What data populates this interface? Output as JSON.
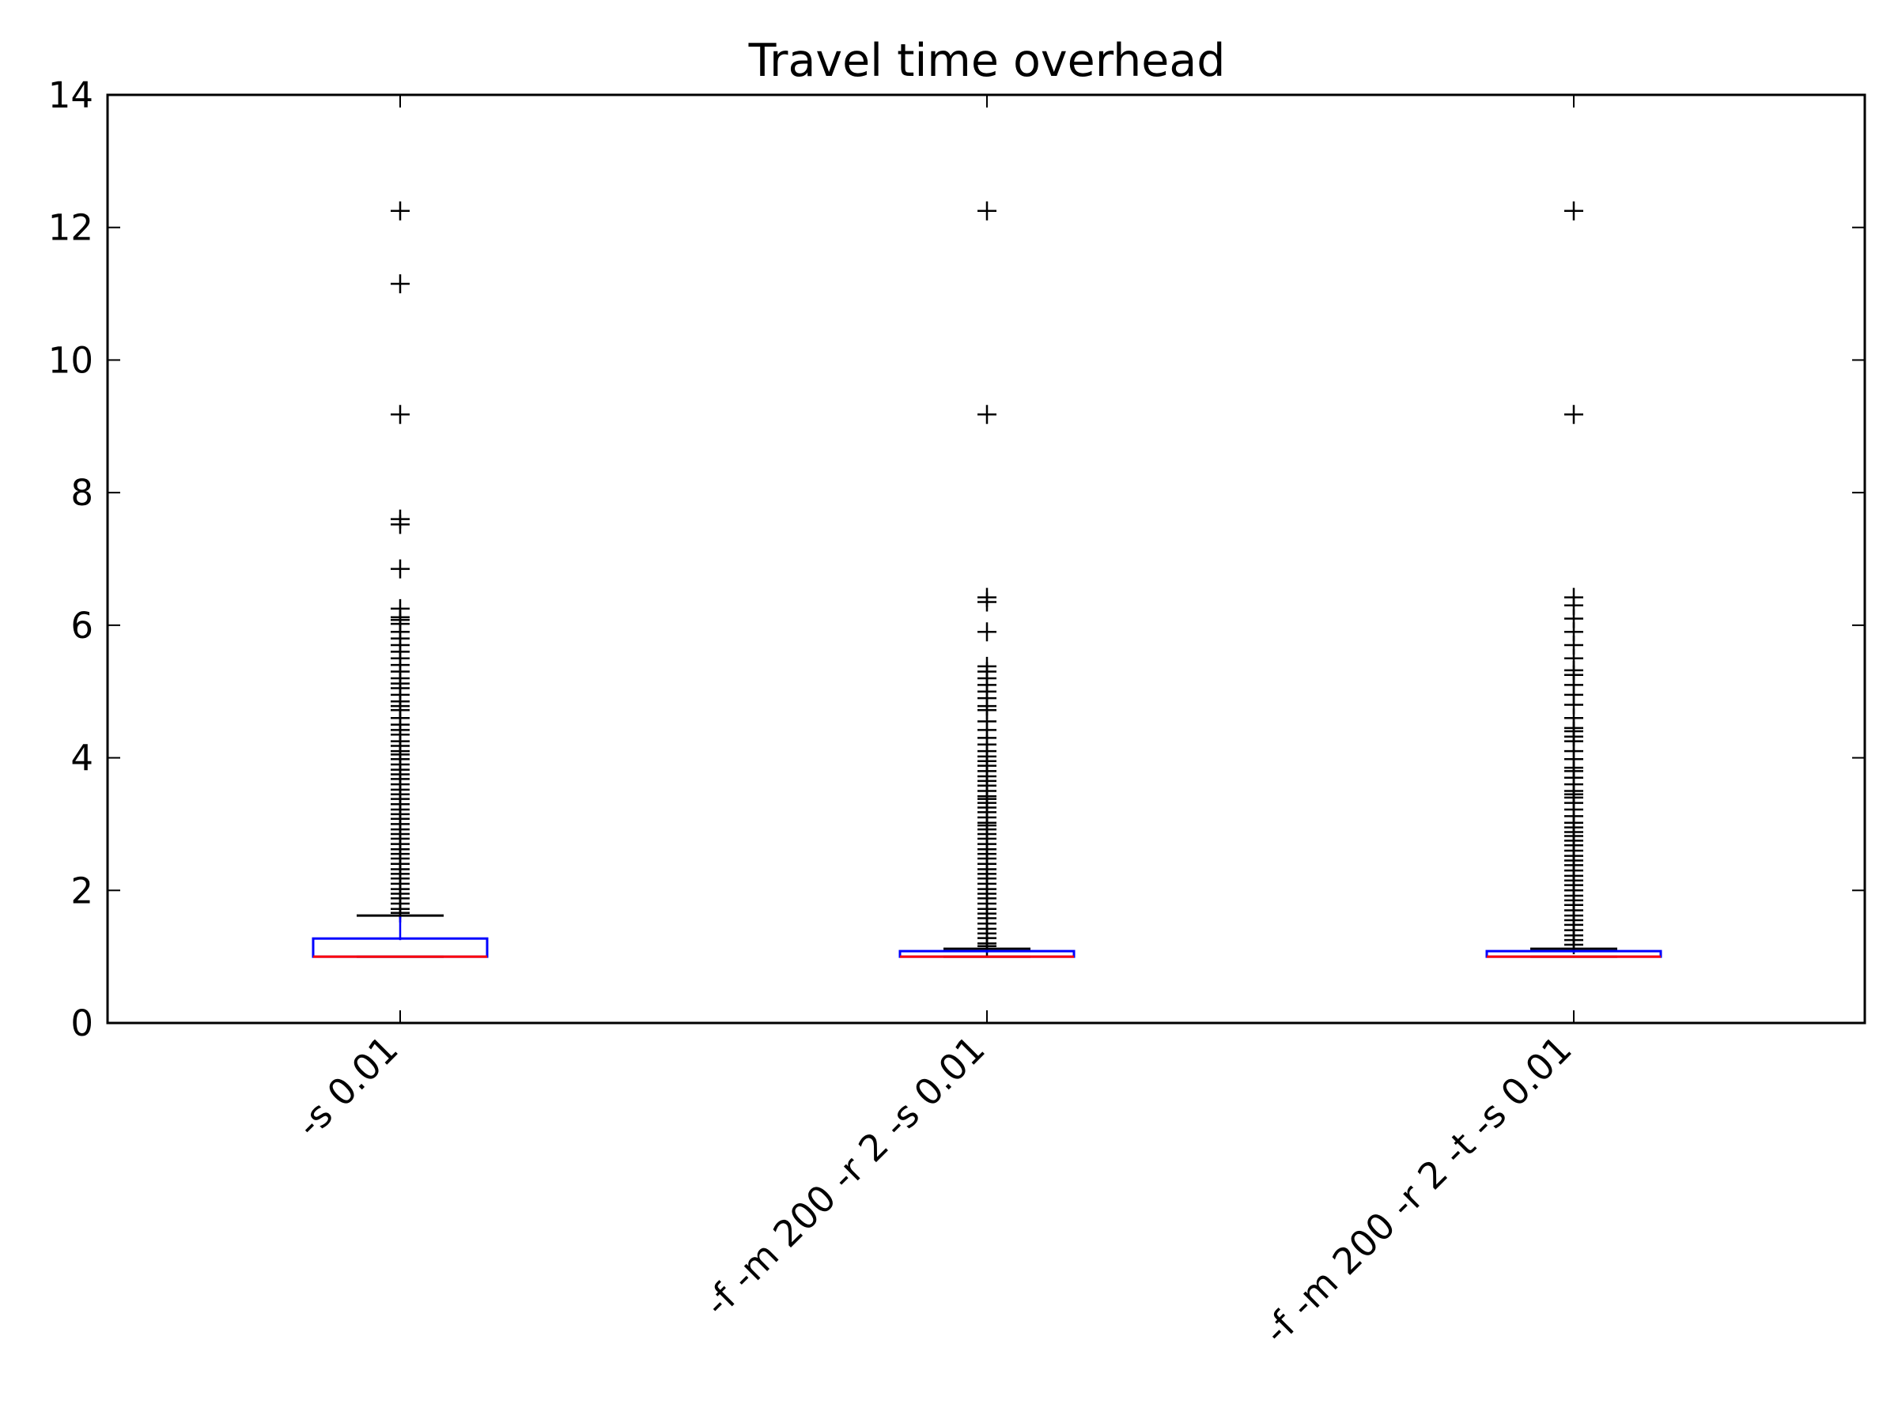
{
  "chart_data": {
    "type": "box",
    "title": "Travel time overhead",
    "xlabel": "",
    "ylabel": "",
    "ylim": [
      0,
      14
    ],
    "yticks": [
      0,
      2,
      4,
      6,
      8,
      10,
      12,
      14
    ],
    "grid": false,
    "categories": [
      "-s 0.01",
      "-f -m 200 -r 2 -s 0.01",
      "-f -m 200 -r 2 -t -s 0.01"
    ],
    "boxes": [
      {
        "category": "-s 0.01",
        "whisker_low": 1.0,
        "q1": 1.0,
        "median": 1.0,
        "q3": 1.25,
        "whisker_high": 1.62,
        "outliers": [
          12.25,
          11.15,
          9.18,
          7.6,
          7.52,
          6.85,
          6.25,
          6.12,
          6.08,
          6.02,
          5.9,
          5.8,
          5.7,
          5.6,
          5.5,
          5.4,
          5.3,
          5.2,
          5.12,
          5.05,
          4.95,
          4.85,
          4.78,
          4.72,
          4.6,
          4.5,
          4.42,
          4.35,
          4.25,
          4.18,
          4.1,
          4.05,
          3.98,
          3.9,
          3.82,
          3.75,
          3.68,
          3.6,
          3.52,
          3.45,
          3.38,
          3.3,
          3.22,
          3.15,
          3.08,
          3.0,
          2.92,
          2.85,
          2.78,
          2.7,
          2.62,
          2.55,
          2.48,
          2.4,
          2.32,
          2.25,
          2.18,
          2.1,
          2.02,
          1.95,
          1.88,
          1.8,
          1.72,
          1.66
        ]
      },
      {
        "category": "-f -m 200 -r 2 -s 0.01",
        "whisker_low": 1.0,
        "q1": 1.0,
        "median": 1.0,
        "q3": 1.06,
        "whisker_high": 1.12,
        "outliers": [
          12.25,
          9.18,
          6.42,
          6.35,
          5.9,
          5.38,
          5.3,
          5.2,
          5.1,
          5.0,
          4.9,
          4.78,
          4.72,
          4.55,
          4.42,
          4.3,
          4.2,
          4.1,
          4.02,
          3.95,
          3.88,
          3.8,
          3.72,
          3.65,
          3.58,
          3.5,
          3.42,
          3.38,
          3.32,
          3.25,
          3.18,
          3.1,
          3.02,
          2.98,
          2.92,
          2.85,
          2.78,
          2.7,
          2.62,
          2.55,
          2.48,
          2.4,
          2.32,
          2.25,
          2.18,
          2.1,
          2.02,
          1.95,
          1.88,
          1.8,
          1.72,
          1.65,
          1.58,
          1.5,
          1.42,
          1.35,
          1.28,
          1.2,
          1.16
        ]
      },
      {
        "category": "-f -m 200 -r 2 -t -s 0.01",
        "whisker_low": 1.0,
        "q1": 1.0,
        "median": 1.0,
        "q3": 1.06,
        "whisker_high": 1.12,
        "outliers": [
          12.25,
          9.18,
          6.42,
          6.3,
          6.1,
          5.9,
          5.7,
          5.5,
          5.32,
          5.25,
          5.1,
          4.95,
          4.8,
          4.6,
          4.45,
          4.4,
          4.32,
          4.25,
          4.1,
          3.98,
          3.85,
          3.8,
          3.7,
          3.6,
          3.5,
          3.45,
          3.4,
          3.32,
          3.22,
          3.12,
          3.02,
          2.95,
          2.88,
          2.82,
          2.75,
          2.68,
          2.6,
          2.52,
          2.45,
          2.38,
          2.3,
          2.22,
          2.15,
          2.08,
          2.0,
          1.92,
          1.85,
          1.78,
          1.7,
          1.62,
          1.55,
          1.48,
          1.4,
          1.32,
          1.25,
          1.18
        ]
      }
    ],
    "colors": {
      "box": "#0000ff",
      "median": "#ff0000",
      "whisker": "#000000",
      "outlier": "#000000"
    },
    "outlier_marker": "+"
  }
}
